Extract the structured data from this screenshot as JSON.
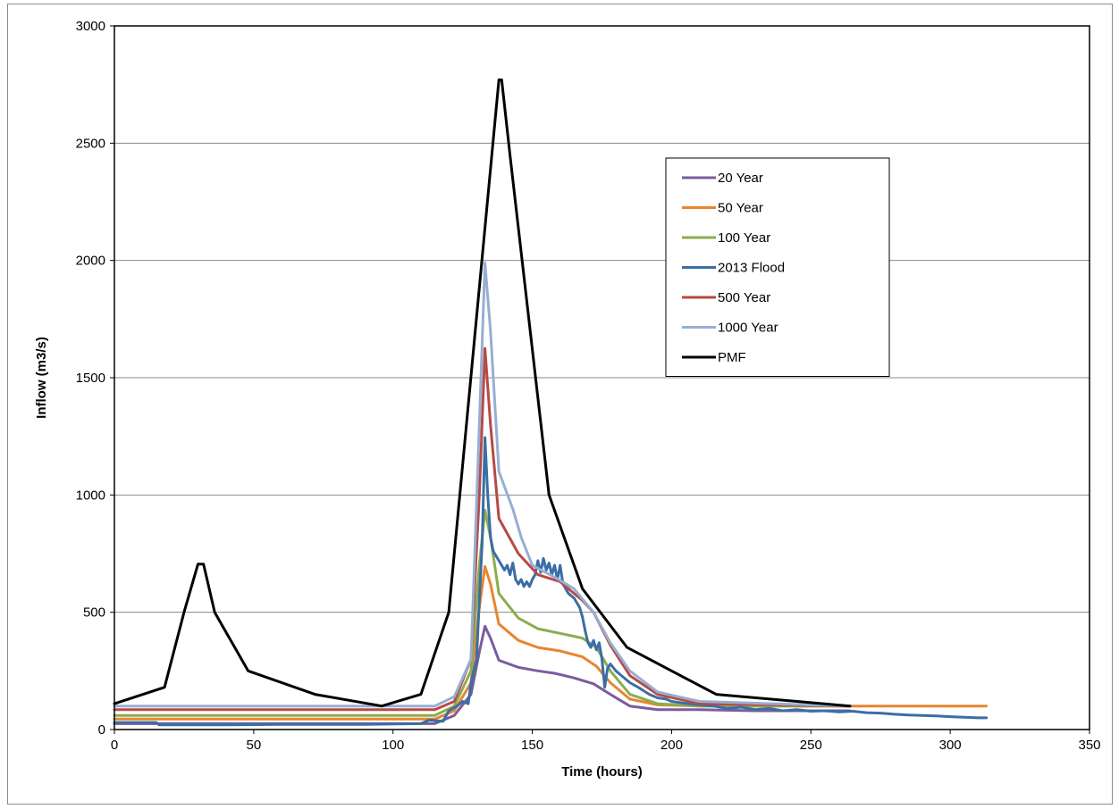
{
  "chart_data": {
    "type": "line",
    "xlabel": "Time (hours)",
    "ylabel": "Inflow (m3/s)",
    "xlim": [
      0,
      350
    ],
    "ylim": [
      0,
      3000
    ],
    "x_ticks": [
      "0",
      "50",
      "100",
      "150",
      "200",
      "250",
      "300",
      "350"
    ],
    "y_ticks": [
      "0",
      "500",
      "1000",
      "1500",
      "2000",
      "2500",
      "3000"
    ],
    "grid": "horizontal",
    "legend_position": "top-right",
    "series": [
      {
        "name": "20 Year",
        "color": "#7b5c9e",
        "points": [
          [
            0,
            25
          ],
          [
            115,
            25
          ],
          [
            122,
            60
          ],
          [
            128,
            150
          ],
          [
            131,
            330
          ],
          [
            133,
            440
          ],
          [
            135,
            390
          ],
          [
            138,
            295
          ],
          [
            145,
            265
          ],
          [
            152,
            250
          ],
          [
            158,
            240
          ],
          [
            165,
            220
          ],
          [
            172,
            195
          ],
          [
            178,
            150
          ],
          [
            185,
            100
          ],
          [
            195,
            85
          ],
          [
            210,
            85
          ],
          [
            230,
            80
          ],
          [
            250,
            80
          ],
          [
            264,
            80
          ]
        ]
      },
      {
        "name": "50 Year",
        "color": "#e8862e",
        "points": [
          [
            0,
            45
          ],
          [
            115,
            45
          ],
          [
            122,
            80
          ],
          [
            128,
            200
          ],
          [
            131,
            520
          ],
          [
            133,
            695
          ],
          [
            135,
            620
          ],
          [
            138,
            450
          ],
          [
            145,
            380
          ],
          [
            152,
            350
          ],
          [
            160,
            335
          ],
          [
            168,
            310
          ],
          [
            173,
            270
          ],
          [
            178,
            200
          ],
          [
            185,
            130
          ],
          [
            195,
            105
          ],
          [
            210,
            100
          ],
          [
            250,
            100
          ],
          [
            313,
            100
          ]
        ]
      },
      {
        "name": "100 Year",
        "color": "#8cac4f",
        "points": [
          [
            0,
            60
          ],
          [
            115,
            60
          ],
          [
            122,
            100
          ],
          [
            128,
            250
          ],
          [
            131,
            700
          ],
          [
            133,
            935
          ],
          [
            135,
            820
          ],
          [
            138,
            580
          ],
          [
            145,
            475
          ],
          [
            152,
            430
          ],
          [
            160,
            410
          ],
          [
            168,
            390
          ],
          [
            173,
            350
          ],
          [
            178,
            250
          ],
          [
            185,
            150
          ],
          [
            195,
            110
          ],
          [
            210,
            100
          ],
          [
            264,
            100
          ]
        ]
      },
      {
        "name": "2013 Flood",
        "color": "#3a6ea5",
        "points": [
          [
            0,
            30
          ],
          [
            15,
            30
          ],
          [
            16,
            20
          ],
          [
            40,
            20
          ],
          [
            60,
            22
          ],
          [
            90,
            22
          ],
          [
            110,
            25
          ],
          [
            113,
            40
          ],
          [
            118,
            35
          ],
          [
            120,
            80
          ],
          [
            123,
            100
          ],
          [
            125,
            120
          ],
          [
            127,
            110
          ],
          [
            128,
            200
          ],
          [
            130,
            300
          ],
          [
            131,
            550
          ],
          [
            132,
            800
          ],
          [
            133,
            1245
          ],
          [
            134,
            1000
          ],
          [
            135,
            820
          ],
          [
            136,
            760
          ],
          [
            138,
            720
          ],
          [
            140,
            680
          ],
          [
            141,
            700
          ],
          [
            142,
            660
          ],
          [
            143,
            710
          ],
          [
            144,
            640
          ],
          [
            145,
            620
          ],
          [
            146,
            640
          ],
          [
            147,
            610
          ],
          [
            148,
            630
          ],
          [
            149,
            610
          ],
          [
            150,
            640
          ],
          [
            151,
            660
          ],
          [
            152,
            720
          ],
          [
            153,
            670
          ],
          [
            154,
            730
          ],
          [
            155,
            680
          ],
          [
            156,
            710
          ],
          [
            157,
            660
          ],
          [
            158,
            700
          ],
          [
            159,
            640
          ],
          [
            160,
            700
          ],
          [
            161,
            620
          ],
          [
            163,
            580
          ],
          [
            165,
            560
          ],
          [
            167,
            520
          ],
          [
            168,
            480
          ],
          [
            169,
            420
          ],
          [
            170,
            370
          ],
          [
            171,
            350
          ],
          [
            172,
            380
          ],
          [
            173,
            340
          ],
          [
            174,
            370
          ],
          [
            175,
            300
          ],
          [
            176,
            180
          ],
          [
            177,
            260
          ],
          [
            178,
            280
          ],
          [
            180,
            250
          ],
          [
            182,
            230
          ],
          [
            185,
            200
          ],
          [
            188,
            180
          ],
          [
            192,
            150
          ],
          [
            195,
            135
          ],
          [
            198,
            130
          ],
          [
            200,
            120
          ],
          [
            203,
            115
          ],
          [
            206,
            110
          ],
          [
            210,
            105
          ],
          [
            215,
            100
          ],
          [
            220,
            90
          ],
          [
            225,
            95
          ],
          [
            230,
            85
          ],
          [
            235,
            90
          ],
          [
            240,
            80
          ],
          [
            245,
            85
          ],
          [
            250,
            78
          ],
          [
            255,
            80
          ],
          [
            260,
            75
          ],
          [
            265,
            78
          ],
          [
            270,
            72
          ],
          [
            275,
            70
          ],
          [
            280,
            65
          ],
          [
            285,
            62
          ],
          [
            290,
            60
          ],
          [
            295,
            58
          ],
          [
            300,
            55
          ],
          [
            305,
            52
          ],
          [
            310,
            50
          ],
          [
            313,
            50
          ]
        ]
      },
      {
        "name": "500 Year",
        "color": "#b64b44",
        "points": [
          [
            0,
            85
          ],
          [
            115,
            85
          ],
          [
            122,
            120
          ],
          [
            128,
            300
          ],
          [
            131,
            1000
          ],
          [
            133,
            1625
          ],
          [
            135,
            1300
          ],
          [
            138,
            900
          ],
          [
            145,
            750
          ],
          [
            152,
            660
          ],
          [
            160,
            630
          ],
          [
            168,
            550
          ],
          [
            172,
            500
          ],
          [
            178,
            360
          ],
          [
            185,
            230
          ],
          [
            195,
            150
          ],
          [
            210,
            110
          ],
          [
            264,
            100
          ]
        ]
      },
      {
        "name": "1000 Year",
        "color": "#97aed4",
        "points": [
          [
            0,
            100
          ],
          [
            115,
            100
          ],
          [
            122,
            140
          ],
          [
            128,
            300
          ],
          [
            131,
            1300
          ],
          [
            133,
            1990
          ],
          [
            135,
            1700
          ],
          [
            138,
            1100
          ],
          [
            143,
            940
          ],
          [
            146,
            820
          ],
          [
            150,
            700
          ],
          [
            158,
            650
          ],
          [
            165,
            600
          ],
          [
            172,
            500
          ],
          [
            178,
            370
          ],
          [
            185,
            250
          ],
          [
            195,
            160
          ],
          [
            210,
            120
          ],
          [
            264,
            100
          ]
        ]
      },
      {
        "name": "PMF",
        "color": "#000000",
        "points": [
          [
            0,
            110
          ],
          [
            18,
            180
          ],
          [
            25,
            500
          ],
          [
            30,
            705
          ],
          [
            32,
            705
          ],
          [
            36,
            500
          ],
          [
            48,
            250
          ],
          [
            72,
            150
          ],
          [
            96,
            100
          ],
          [
            110,
            150
          ],
          [
            120,
            500
          ],
          [
            138,
            2770
          ],
          [
            139,
            2770
          ],
          [
            142,
            2450
          ],
          [
            156,
            1000
          ],
          [
            168,
            600
          ],
          [
            184,
            350
          ],
          [
            216,
            150
          ],
          [
            264,
            100
          ]
        ]
      }
    ]
  }
}
